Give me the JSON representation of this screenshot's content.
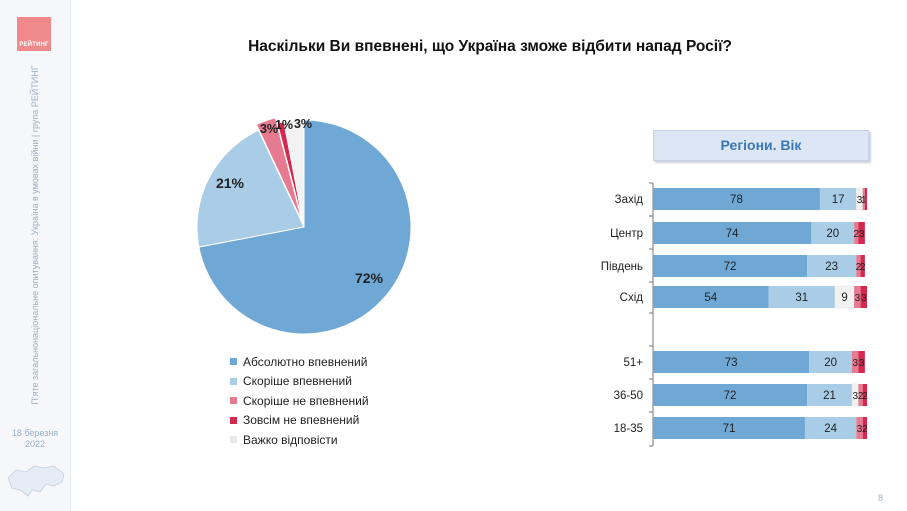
{
  "logo": {
    "text": "РЕЙТИНГ"
  },
  "sidebar": {
    "vertical_text": "П'яте загальнонаціональне опитування: Україна в умовах війни | група РЕЙТИНГ",
    "date_line1": "18 березня",
    "date_line2": "2022"
  },
  "title": "Наскільки Ви впевнені, що Україна зможе відбити напад Росії?",
  "region_box_label": "Регіони. Вік",
  "page_number": "8",
  "colors": {
    "absolutely": "#6fa8d4",
    "rather": "#a9cde6",
    "rather_not": "#e67a90",
    "not_at_all": "#d5284f",
    "hard_to_say": "#f2f2f2"
  },
  "chart_data": [
    {
      "type": "pie",
      "categories": [
        "Абсолютно впевнений",
        "Скоріше впевнений",
        "Скоріше не впевнений",
        "Зовсім не впевнений",
        "Важко відповісти"
      ],
      "values": [
        72,
        21,
        3,
        1,
        3
      ],
      "labels": [
        "72%",
        "21%",
        "3%",
        "1%",
        "3%"
      ],
      "legend_position": "bottom"
    },
    {
      "type": "bar",
      "orientation": "horizontal",
      "stacked": true,
      "categories": [
        "Захід",
        "Центр",
        "Південь",
        "Схід",
        "51+",
        "36-50",
        "18-35"
      ],
      "series": [
        {
          "name": "Абсолютно впевнений",
          "values": [
            78,
            74,
            72,
            54,
            73,
            72,
            71
          ]
        },
        {
          "name": "Скоріше впевнений",
          "values": [
            17,
            20,
            23,
            31,
            20,
            21,
            24
          ]
        },
        {
          "name": "Важко відповісти",
          "values": [
            3,
            0,
            0,
            9,
            0,
            3,
            0
          ]
        },
        {
          "name": "Скоріше не впевнений",
          "values": [
            1,
            2,
            2,
            3,
            3,
            2,
            3
          ]
        },
        {
          "name": "Зовсім не впевнений",
          "values": [
            1,
            3,
            2,
            3,
            3,
            2,
            2
          ]
        }
      ],
      "data_labels": [
        [
          "78",
          "17",
          "3",
          "1",
          ""
        ],
        [
          "74",
          "20",
          "",
          "2",
          "3"
        ],
        [
          "72",
          "23",
          "",
          "2",
          "2"
        ],
        [
          "54",
          "31",
          "9",
          "3",
          "3"
        ],
        [
          "73",
          "20",
          "",
          "3",
          "3"
        ],
        [
          "72",
          "21",
          "3",
          "2",
          "2"
        ],
        [
          "71",
          "24",
          "",
          "3",
          "2"
        ]
      ],
      "xlim": [
        0,
        100
      ]
    }
  ]
}
